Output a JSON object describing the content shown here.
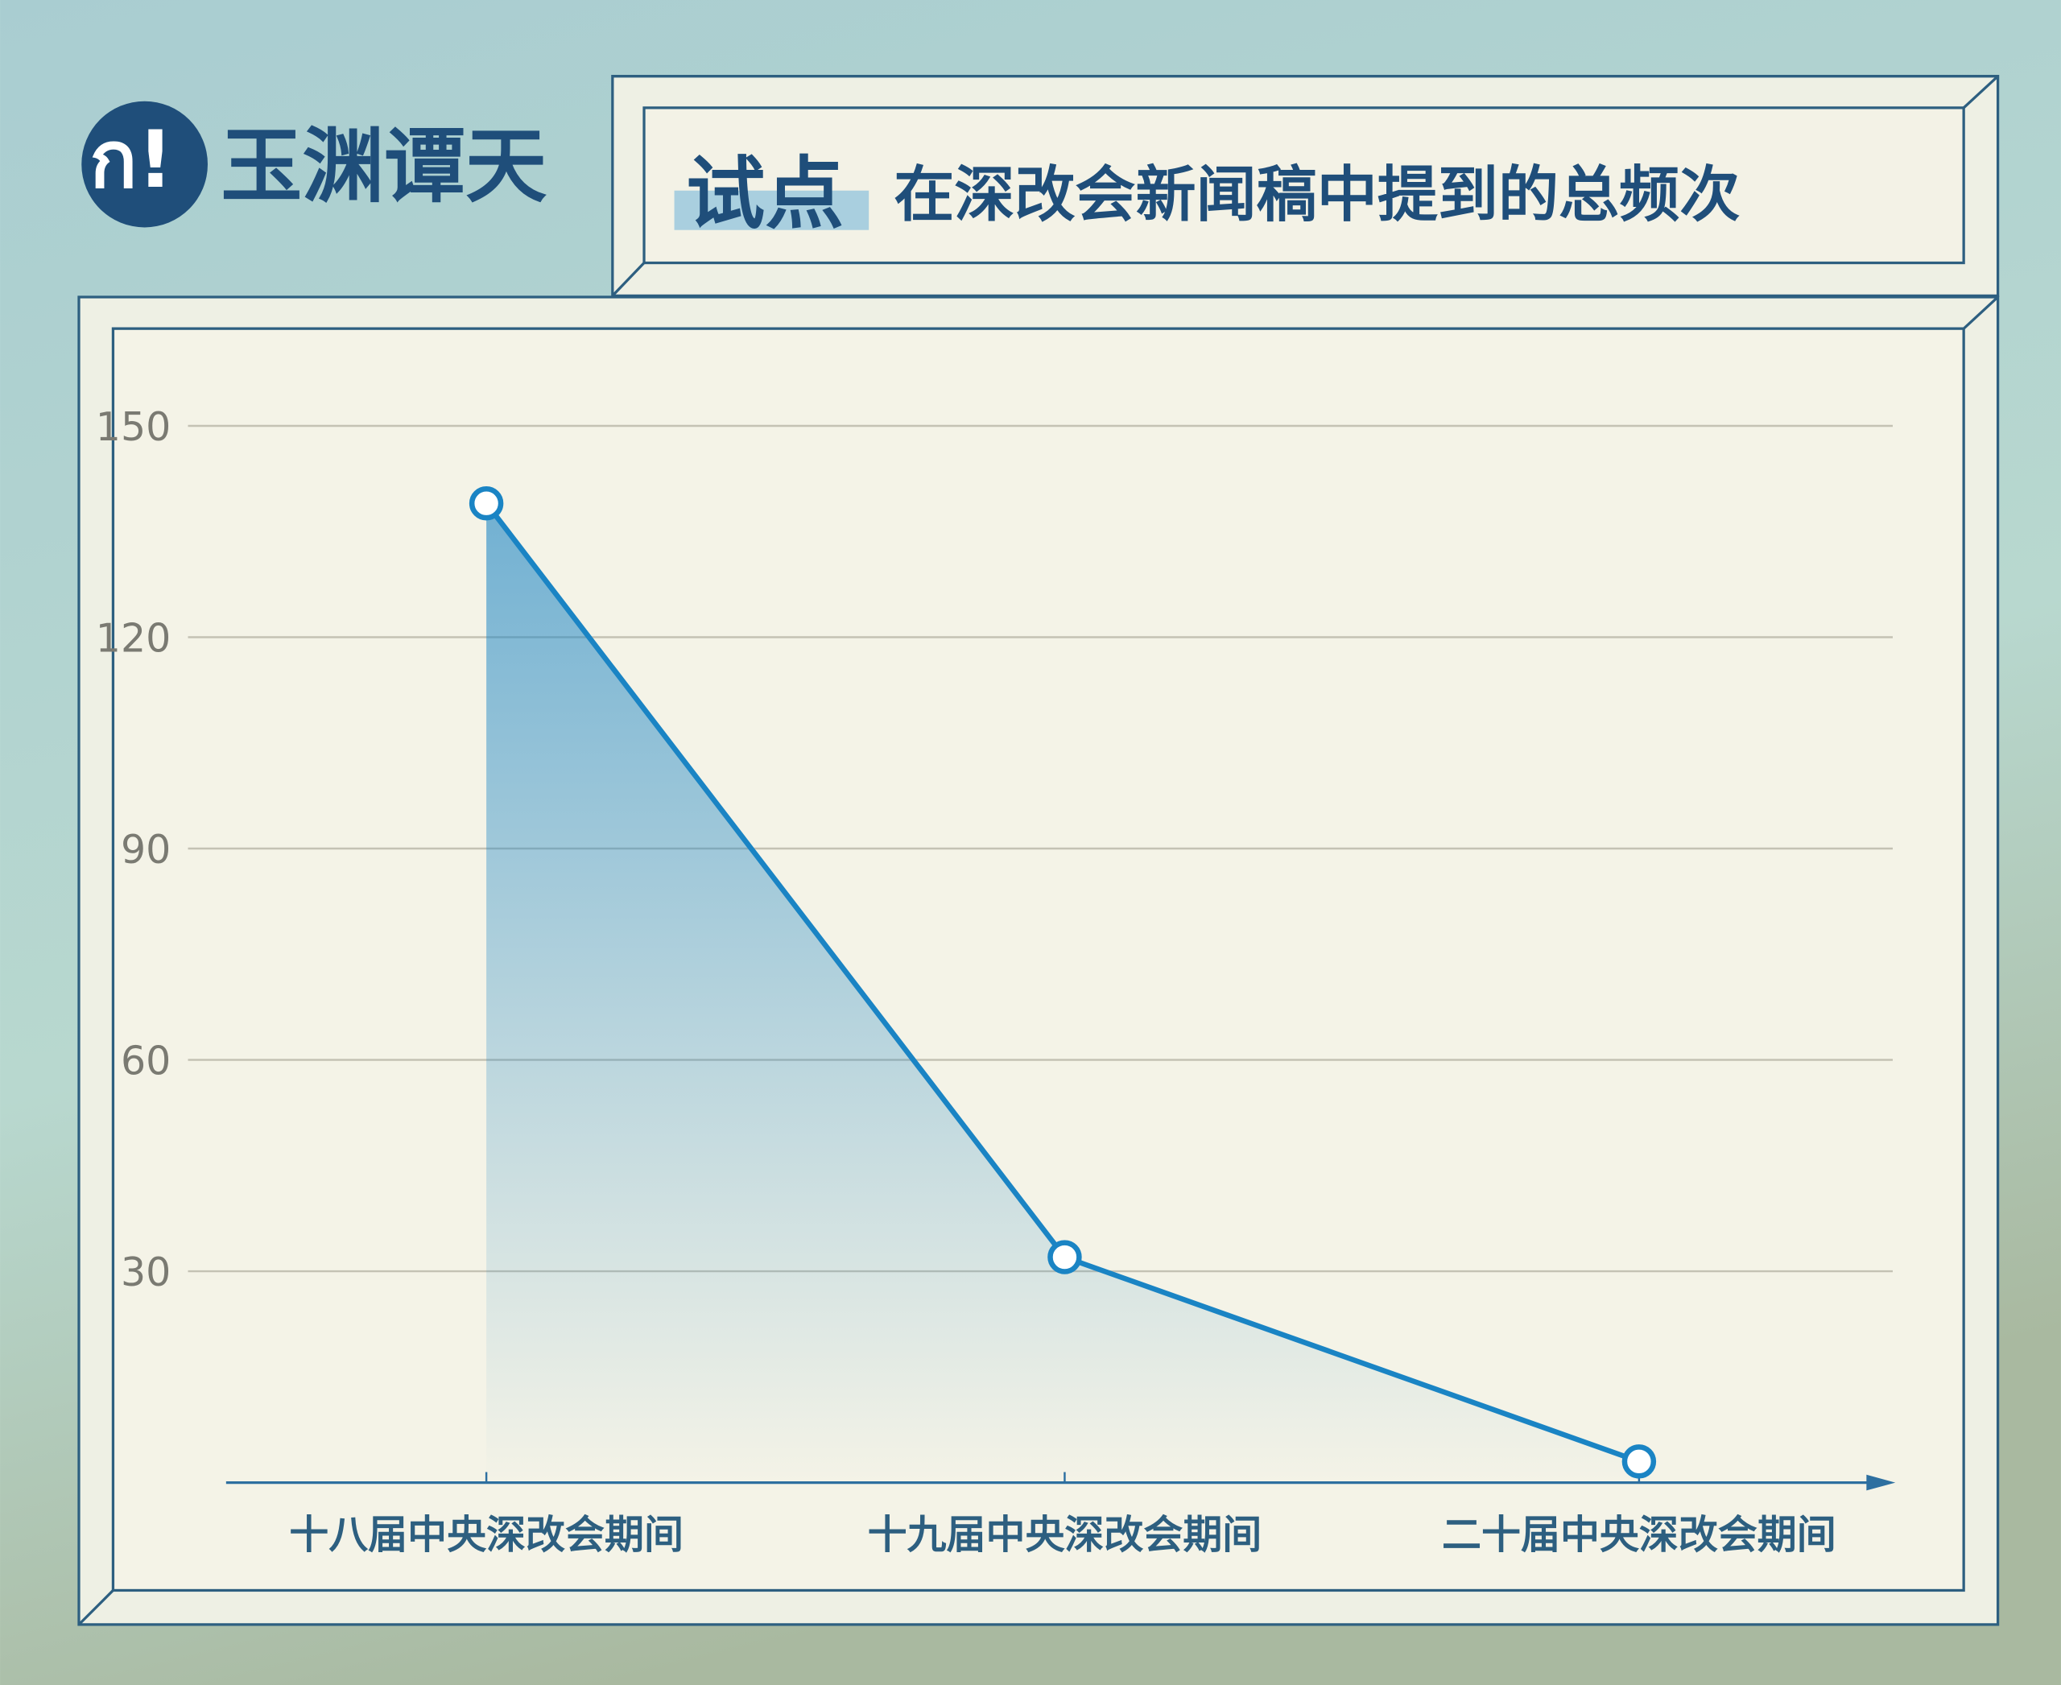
{
  "logo": "玉渊谭天",
  "chart_data": {
    "type": "line",
    "title_highlight": "试点",
    "title": "在深改会新闻稿中提到的总频次",
    "categories": [
      "十八届中央深改会期间",
      "十九届中央深改会期间",
      "二十届中央深改会期间"
    ],
    "series": [
      {
        "name": "总频次",
        "color": "#1a84c4",
        "values": [
          139,
          32,
          3
        ]
      }
    ],
    "ylim": [
      0,
      150
    ],
    "yticks": [
      30,
      60,
      90,
      120,
      150
    ],
    "grid": true
  }
}
